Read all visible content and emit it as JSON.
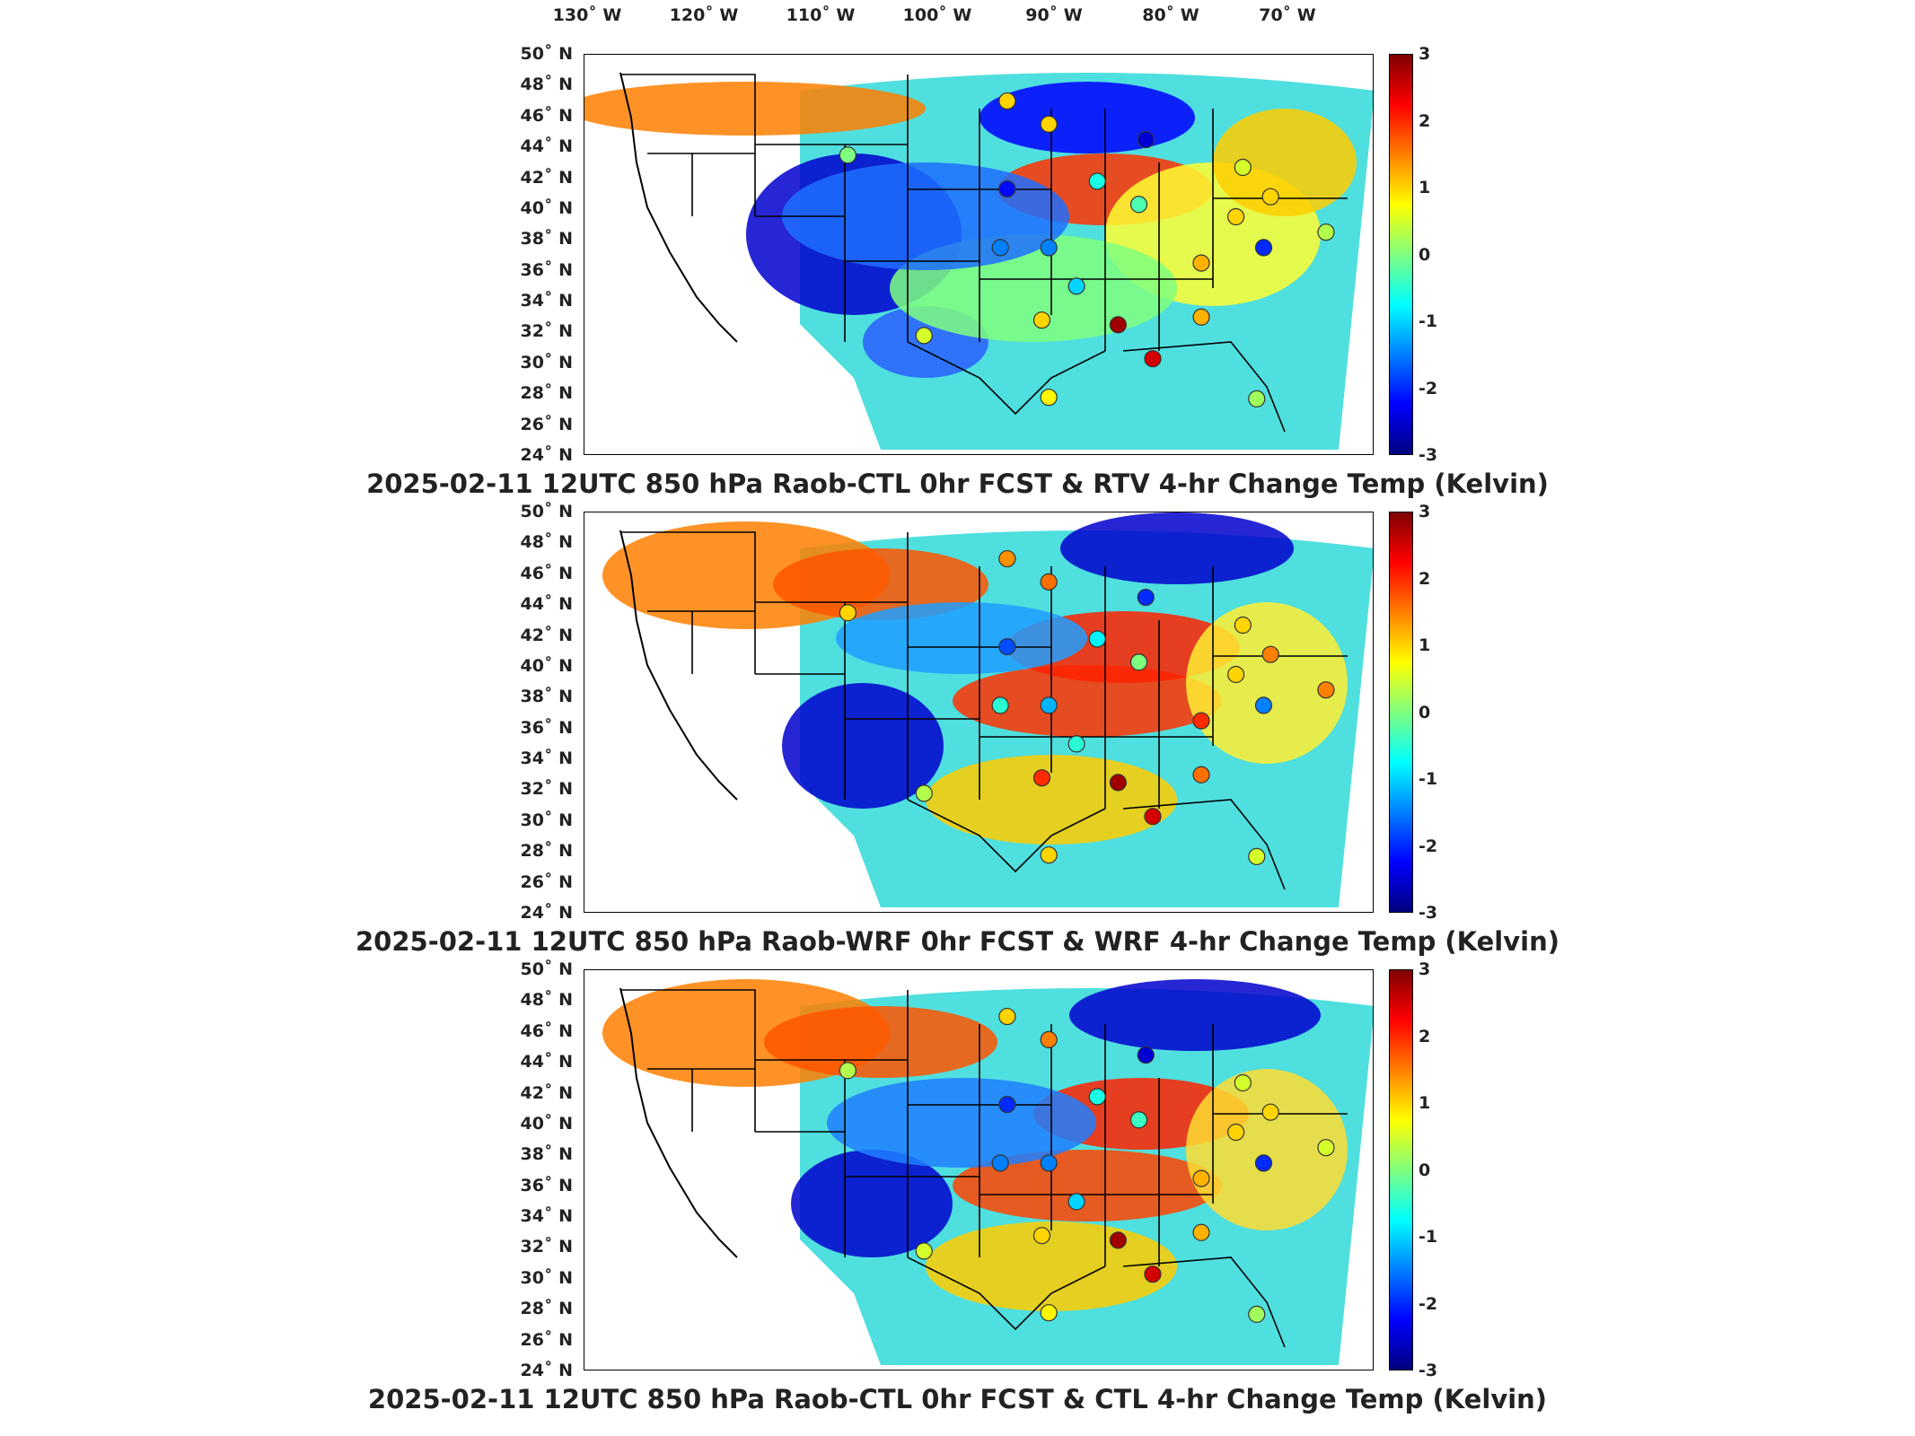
{
  "lon_labels": [
    "130˚ W",
    "120˚ W",
    "110˚ W",
    "100˚ W",
    "90˚ W",
    "80˚ W",
    "70˚ W"
  ],
  "lat_labels": [
    "50˚ N",
    "48˚ N",
    "46˚ N",
    "44˚ N",
    "42˚ N",
    "40˚ N",
    "38˚ N",
    "36˚ N",
    "34˚ N",
    "32˚ N",
    "30˚ N",
    "28˚ N",
    "26˚ N",
    "24˚ N"
  ],
  "colorbar": {
    "ticks": [
      "3",
      "2",
      "1",
      "0",
      "-1",
      "-2",
      "-3"
    ],
    "colormap": [
      "#00007f",
      "#0000ff",
      "#007fff",
      "#00ffff",
      "#7fff7f",
      "#ffff00",
      "#ff7f00",
      "#ff0000",
      "#7f0000"
    ],
    "range": [
      -3,
      3
    ]
  },
  "panels": [
    {
      "title": "2025-02-11 12UTC 850 hPa Raob-CTL 0hr FCST & RTV 4-hr Change Temp (Kelvin)"
    },
    {
      "title": "2025-02-11 12UTC 850 hPa Raob-WRF 0hr FCST & WRF 4-hr Change Temp (Kelvin)"
    },
    {
      "title": "2025-02-11 12UTC 850 hPa Raob-CTL 0hr FCST & CTL 4-hr Change Temp (Kelvin)"
    }
  ],
  "stations": [
    {
      "lon": -112.0,
      "lat": 43.5,
      "values": [
        0.0,
        1.0,
        0.3
      ]
    },
    {
      "lon": -100.5,
      "lat": 47.0,
      "values": [
        1.0,
        1.4,
        1.0
      ]
    },
    {
      "lon": -97.5,
      "lat": 45.5,
      "values": [
        1.0,
        1.6,
        1.5
      ]
    },
    {
      "lon": -90.5,
      "lat": 44.5,
      "values": [
        -2.5,
        -2.0,
        -2.5
      ]
    },
    {
      "lon": -83.5,
      "lat": 42.7,
      "values": [
        0.5,
        1.0,
        0.5
      ]
    },
    {
      "lon": -100.5,
      "lat": 41.3,
      "values": [
        -2.2,
        -1.8,
        -2.0
      ]
    },
    {
      "lon": -94.0,
      "lat": 41.8,
      "values": [
        -0.6,
        -0.8,
        -0.6
      ]
    },
    {
      "lon": -91.0,
      "lat": 40.3,
      "values": [
        -0.3,
        0.0,
        -0.4
      ]
    },
    {
      "lon": -84.0,
      "lat": 39.5,
      "values": [
        1.0,
        1.0,
        1.0
      ]
    },
    {
      "lon": -81.5,
      "lat": 40.8,
      "values": [
        1.0,
        1.5,
        1.0
      ]
    },
    {
      "lon": -97.5,
      "lat": 37.5,
      "values": [
        -1.5,
        -1.2,
        -1.5
      ]
    },
    {
      "lon": -101.0,
      "lat": 37.5,
      "values": [
        -1.5,
        -0.5,
        -1.5
      ]
    },
    {
      "lon": -86.5,
      "lat": 36.5,
      "values": [
        1.2,
        2.0,
        1.2
      ]
    },
    {
      "lon": -82.0,
      "lat": 37.5,
      "values": [
        -2.0,
        -1.5,
        -2.0
      ]
    },
    {
      "lon": -95.5,
      "lat": 35.0,
      "values": [
        -1.0,
        -0.5,
        -1.0
      ]
    },
    {
      "lon": -98.0,
      "lat": 32.8,
      "values": [
        1.0,
        2.0,
        1.0
      ]
    },
    {
      "lon": -92.5,
      "lat": 32.5,
      "values": [
        2.8,
        2.8,
        2.8
      ]
    },
    {
      "lon": -86.5,
      "lat": 33.0,
      "values": [
        1.2,
        1.6,
        1.2
      ]
    },
    {
      "lon": -97.5,
      "lat": 27.8,
      "values": [
        0.8,
        1.0,
        0.8
      ]
    },
    {
      "lon": -90.0,
      "lat": 30.3,
      "values": [
        2.5,
        2.5,
        2.5
      ]
    },
    {
      "lon": -82.5,
      "lat": 27.7,
      "values": [
        0.2,
        0.5,
        0.2
      ]
    },
    {
      "lon": -106.5,
      "lat": 31.8,
      "values": [
        0.5,
        0.3,
        0.5
      ]
    },
    {
      "lon": -77.5,
      "lat": 38.5,
      "values": [
        0.3,
        1.5,
        0.5
      ]
    },
    {
      "lon": -73.5,
      "lat": 40.8,
      "values": [
        1.5,
        2.0,
        1.5
      ]
    }
  ]
}
